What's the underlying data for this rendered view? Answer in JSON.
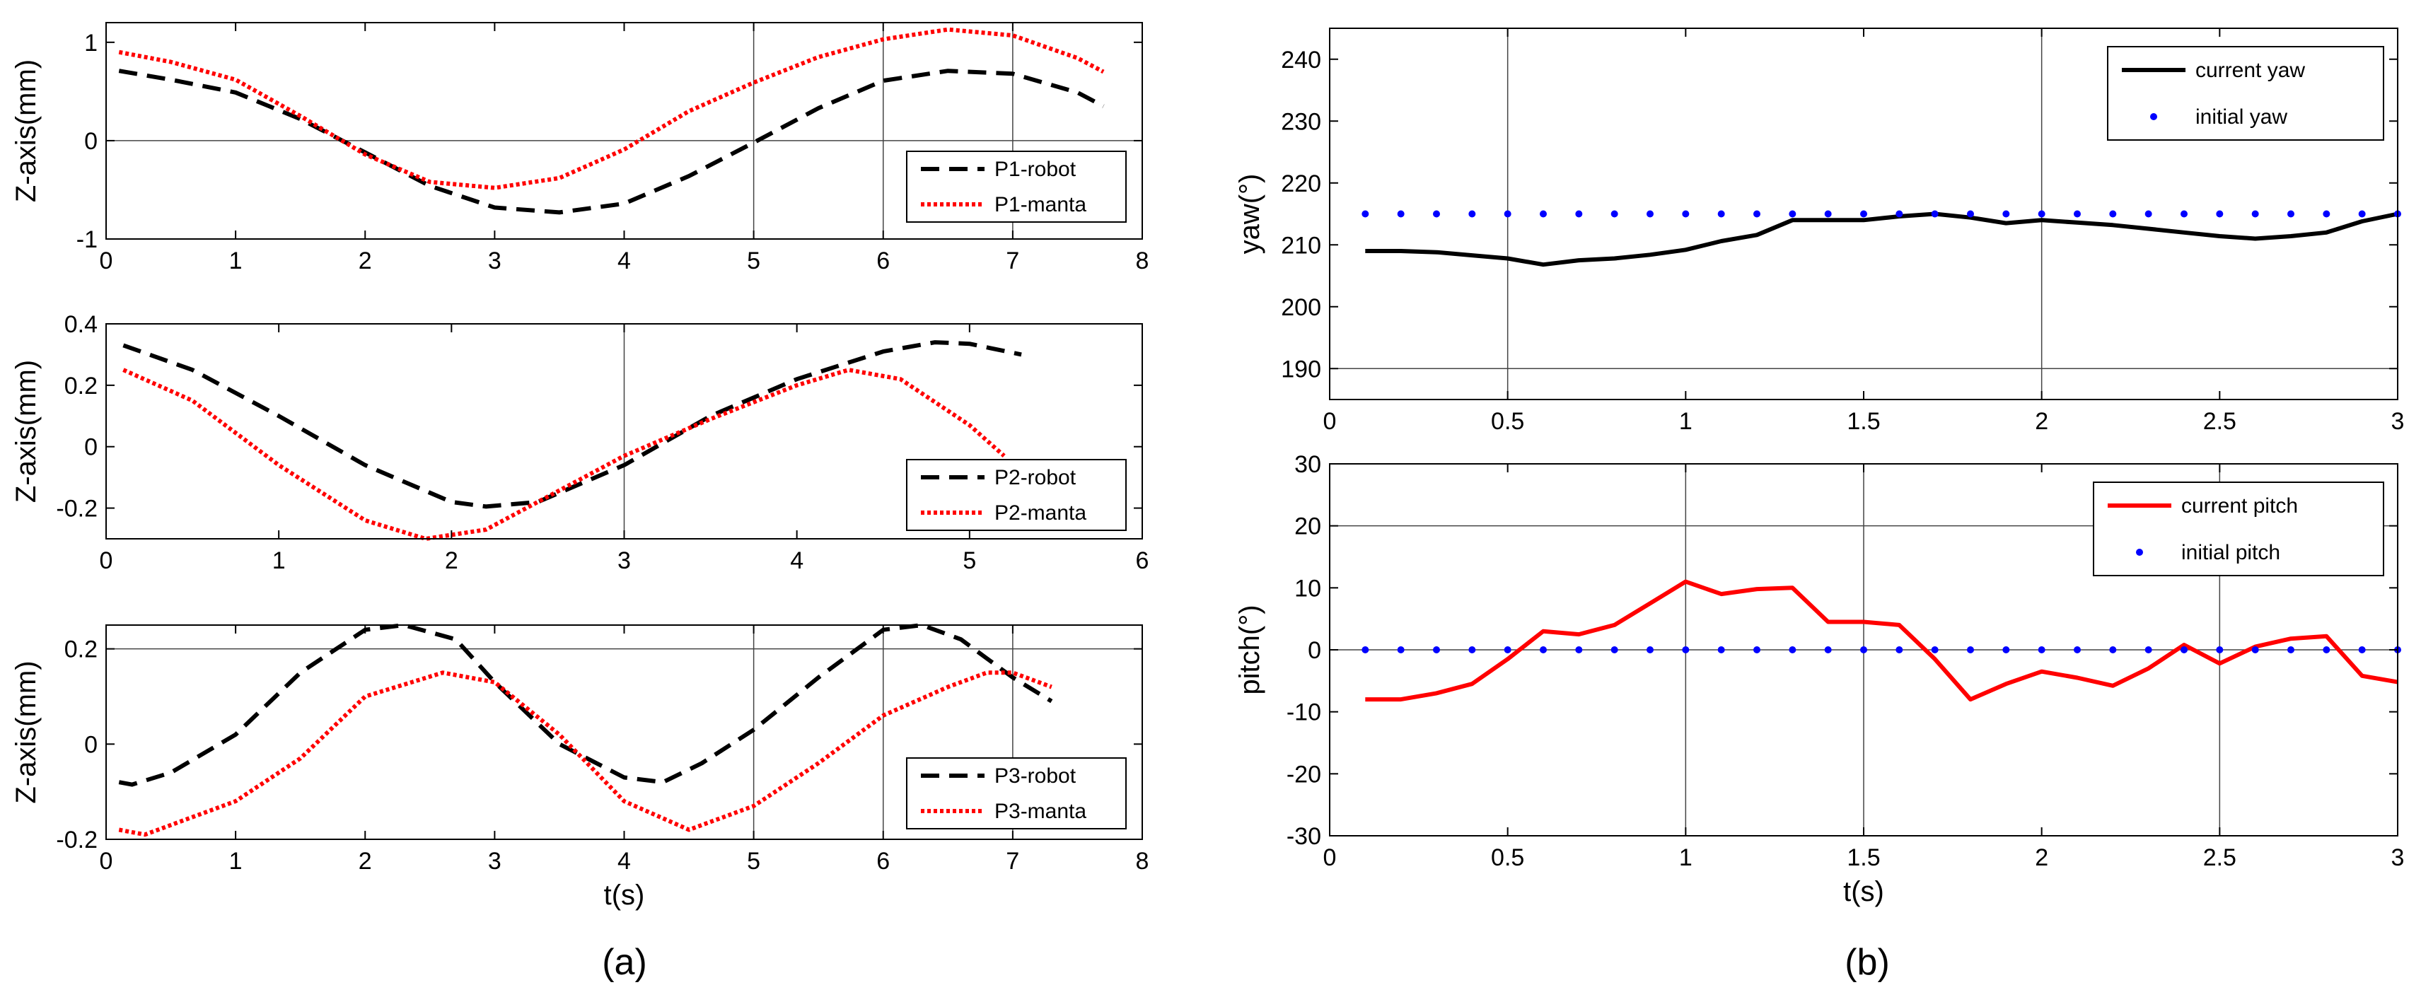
{
  "chart_data": [
    {
      "id": "p1",
      "type": "line",
      "ylabel": "Z-axis(mm)",
      "xlabel": "",
      "xlim": [
        0,
        8
      ],
      "ylim": [
        -1,
        1.2
      ],
      "xticks": [
        "0",
        "1",
        "2",
        "3",
        "4",
        "5",
        "6",
        "7",
        "8"
      ],
      "yticks": [
        "-1",
        "0",
        "1"
      ],
      "vlines": [
        5,
        6,
        7
      ],
      "hlines": [
        0
      ],
      "legend": "bottom-right",
      "series": [
        {
          "name": "P1-robot",
          "style": "dashed",
          "color": "#000000",
          "x": [
            0.1,
            0.5,
            1,
            1.5,
            2,
            2.5,
            3,
            3.5,
            4,
            4.5,
            5,
            5.5,
            6,
            6.5,
            7,
            7.5,
            7.7
          ],
          "y": [
            0.71,
            0.62,
            0.49,
            0.22,
            -0.12,
            -0.46,
            -0.68,
            -0.73,
            -0.64,
            -0.36,
            -0.02,
            0.33,
            0.61,
            0.71,
            0.68,
            0.49,
            0.35
          ]
        },
        {
          "name": "P1-manta",
          "style": "dotted",
          "color": "#ff0000",
          "x": [
            0.1,
            0.5,
            1,
            1.5,
            2,
            2.5,
            3,
            3.5,
            4,
            4.5,
            5,
            5.5,
            6,
            6.5,
            7,
            7.5,
            7.7
          ],
          "y": [
            0.9,
            0.8,
            0.62,
            0.25,
            -0.14,
            -0.42,
            -0.48,
            -0.38,
            -0.09,
            0.3,
            0.59,
            0.85,
            1.03,
            1.13,
            1.07,
            0.84,
            0.7
          ]
        }
      ]
    },
    {
      "id": "p2",
      "type": "line",
      "ylabel": "Z-axis(mm)",
      "xlabel": "",
      "xlim": [
        0,
        6
      ],
      "ylim": [
        -0.3,
        0.4
      ],
      "xticks": [
        "0",
        "1",
        "2",
        "3",
        "4",
        "5",
        "6"
      ],
      "yticks": [
        "-0.2",
        "0",
        "0.2",
        "0.4"
      ],
      "vlines": [
        3
      ],
      "hlines": [],
      "legend": "bottom-right",
      "series": [
        {
          "name": "P2-robot",
          "style": "dashed",
          "color": "#000000",
          "x": [
            0.1,
            0.5,
            1,
            1.5,
            2,
            2.2,
            2.5,
            3,
            3.5,
            4,
            4.5,
            4.8,
            5,
            5.3
          ],
          "y": [
            0.33,
            0.25,
            0.1,
            -0.06,
            -0.18,
            -0.195,
            -0.18,
            -0.06,
            0.1,
            0.22,
            0.31,
            0.34,
            0.335,
            0.3
          ]
        },
        {
          "name": "P2-manta",
          "style": "dotted",
          "color": "#ff0000",
          "x": [
            0.1,
            0.5,
            1,
            1.5,
            1.85,
            2.2,
            2.5,
            3,
            3.5,
            4,
            4.3,
            4.6,
            5,
            5.2
          ],
          "y": [
            0.25,
            0.15,
            -0.06,
            -0.24,
            -0.3,
            -0.27,
            -0.18,
            -0.03,
            0.09,
            0.2,
            0.25,
            0.22,
            0.07,
            -0.03
          ]
        }
      ]
    },
    {
      "id": "p3",
      "type": "line",
      "ylabel": "Z-axis(mm)",
      "xlabel": "t(s)",
      "xlim": [
        0,
        8
      ],
      "ylim": [
        -0.2,
        0.25
      ],
      "xticks": [
        "0",
        "1",
        "2",
        "3",
        "4",
        "5",
        "6",
        "7",
        "8"
      ],
      "yticks": [
        "-0.2",
        "0",
        "0.2"
      ],
      "vlines": [
        5,
        6,
        7
      ],
      "hlines": [
        0.2
      ],
      "legend": "bottom-right",
      "caption": "(a)",
      "series": [
        {
          "name": "P3-robot",
          "style": "dashed",
          "color": "#000000",
          "x": [
            0.1,
            0.2,
            0.5,
            1,
            1.5,
            2,
            2.3,
            2.7,
            3,
            3.5,
            4,
            4.3,
            4.6,
            5,
            5.5,
            6,
            6.3,
            6.6,
            7,
            7.3
          ],
          "y": [
            -0.08,
            -0.085,
            -0.06,
            0.02,
            0.15,
            0.24,
            0.25,
            0.22,
            0.13,
            0.0,
            -0.07,
            -0.08,
            -0.04,
            0.03,
            0.14,
            0.24,
            0.25,
            0.22,
            0.14,
            0.09
          ]
        },
        {
          "name": "P3-manta",
          "style": "dotted",
          "color": "#ff0000",
          "x": [
            0.1,
            0.3,
            0.5,
            1,
            1.5,
            2,
            2.6,
            3,
            3.5,
            4,
            4.5,
            5,
            5.5,
            6,
            6.5,
            6.8,
            7,
            7.3
          ],
          "y": [
            -0.18,
            -0.19,
            -0.17,
            -0.12,
            -0.03,
            0.1,
            0.15,
            0.13,
            0.02,
            -0.12,
            -0.18,
            -0.13,
            -0.04,
            0.06,
            0.12,
            0.15,
            0.15,
            0.12
          ]
        }
      ]
    },
    {
      "id": "yaw",
      "type": "line",
      "ylabel": "yaw(°)",
      "xlabel": "",
      "xlim": [
        0,
        3
      ],
      "ylim": [
        185,
        245
      ],
      "xticks": [
        "0",
        "0.5",
        "1",
        "1.5",
        "2",
        "2.5",
        "3"
      ],
      "yticks": [
        "190",
        "200",
        "210",
        "220",
        "230",
        "240"
      ],
      "vlines": [
        0.5,
        2
      ],
      "hlines": [
        190
      ],
      "legend": "top-right",
      "series": [
        {
          "name": "current yaw",
          "style": "solid",
          "color": "#000000",
          "x": [
            0.1,
            0.2,
            0.3,
            0.4,
            0.5,
            0.6,
            0.7,
            0.8,
            0.9,
            1.0,
            1.1,
            1.2,
            1.3,
            1.4,
            1.5,
            1.6,
            1.7,
            1.8,
            1.9,
            2.0,
            2.1,
            2.2,
            2.3,
            2.4,
            2.5,
            2.6,
            2.7,
            2.8,
            2.9,
            3.0
          ],
          "y": [
            209,
            209,
            208.8,
            208.3,
            207.8,
            206.8,
            207.5,
            207.8,
            208.4,
            209.2,
            210.6,
            211.6,
            214,
            214,
            214,
            214.6,
            215,
            214.4,
            213.5,
            214,
            213.6,
            213.2,
            212.6,
            212,
            211.4,
            211,
            211.4,
            212,
            213.8,
            215
          ]
        },
        {
          "name": "initial yaw",
          "style": "dots",
          "color": "#0000ff",
          "x": [
            0.1,
            0.2,
            0.3,
            0.4,
            0.5,
            0.6,
            0.7,
            0.8,
            0.9,
            1.0,
            1.1,
            1.2,
            1.3,
            1.4,
            1.5,
            1.6,
            1.7,
            1.8,
            1.9,
            2.0,
            2.1,
            2.2,
            2.3,
            2.4,
            2.5,
            2.6,
            2.7,
            2.8,
            2.9,
            3.0
          ],
          "y": [
            215,
            215,
            215,
            215,
            215,
            215,
            215,
            215,
            215,
            215,
            215,
            215,
            215,
            215,
            215,
            215,
            215,
            215,
            215,
            215,
            215,
            215,
            215,
            215,
            215,
            215,
            215,
            215,
            215,
            215
          ]
        }
      ]
    },
    {
      "id": "pitch",
      "type": "line",
      "ylabel": "pitch(°)",
      "xlabel": "t(s)",
      "xlim": [
        0,
        3
      ],
      "ylim": [
        -30,
        30
      ],
      "xticks": [
        "0",
        "0.5",
        "1",
        "1.5",
        "2",
        "2.5",
        "3"
      ],
      "yticks": [
        "-30",
        "-20",
        "-10",
        "0",
        "10",
        "20",
        "30"
      ],
      "vlines": [
        1,
        1.5,
        2.5
      ],
      "hlines": [
        0,
        20
      ],
      "legend": "top-right",
      "caption": "(b)",
      "series": [
        {
          "name": "current pitch",
          "style": "solid",
          "color": "#ff0000",
          "x": [
            0.1,
            0.2,
            0.3,
            0.4,
            0.5,
            0.6,
            0.7,
            0.8,
            0.9,
            1.0,
            1.1,
            1.2,
            1.3,
            1.4,
            1.5,
            1.6,
            1.7,
            1.8,
            1.9,
            2.0,
            2.1,
            2.2,
            2.3,
            2.4,
            2.5,
            2.6,
            2.7,
            2.8,
            2.9,
            3.0
          ],
          "y": [
            -8,
            -8,
            -7,
            -5.5,
            -1.5,
            3,
            2.5,
            4,
            7.5,
            11,
            9,
            9.8,
            10,
            4.5,
            4.5,
            4,
            -1.5,
            -8,
            -5.5,
            -3.5,
            -4.5,
            -5.8,
            -3,
            0.8,
            -2.2,
            0.5,
            1.8,
            2.2,
            -4.2,
            -5.2
          ]
        },
        {
          "name": "initial pitch",
          "style": "dots",
          "color": "#0000ff",
          "x": [
            0.1,
            0.2,
            0.3,
            0.4,
            0.5,
            0.6,
            0.7,
            0.8,
            0.9,
            1.0,
            1.1,
            1.2,
            1.3,
            1.4,
            1.5,
            1.6,
            1.7,
            1.8,
            1.9,
            2.0,
            2.1,
            2.2,
            2.3,
            2.4,
            2.5,
            2.6,
            2.7,
            2.8,
            2.9,
            3.0
          ],
          "y": [
            0,
            0,
            0,
            0,
            0,
            0,
            0,
            0,
            0,
            0,
            0,
            0,
            0,
            0,
            0,
            0,
            0,
            0,
            0,
            0,
            0,
            0,
            0,
            0,
            0,
            0,
            0,
            0,
            0,
            0
          ]
        }
      ]
    }
  ]
}
